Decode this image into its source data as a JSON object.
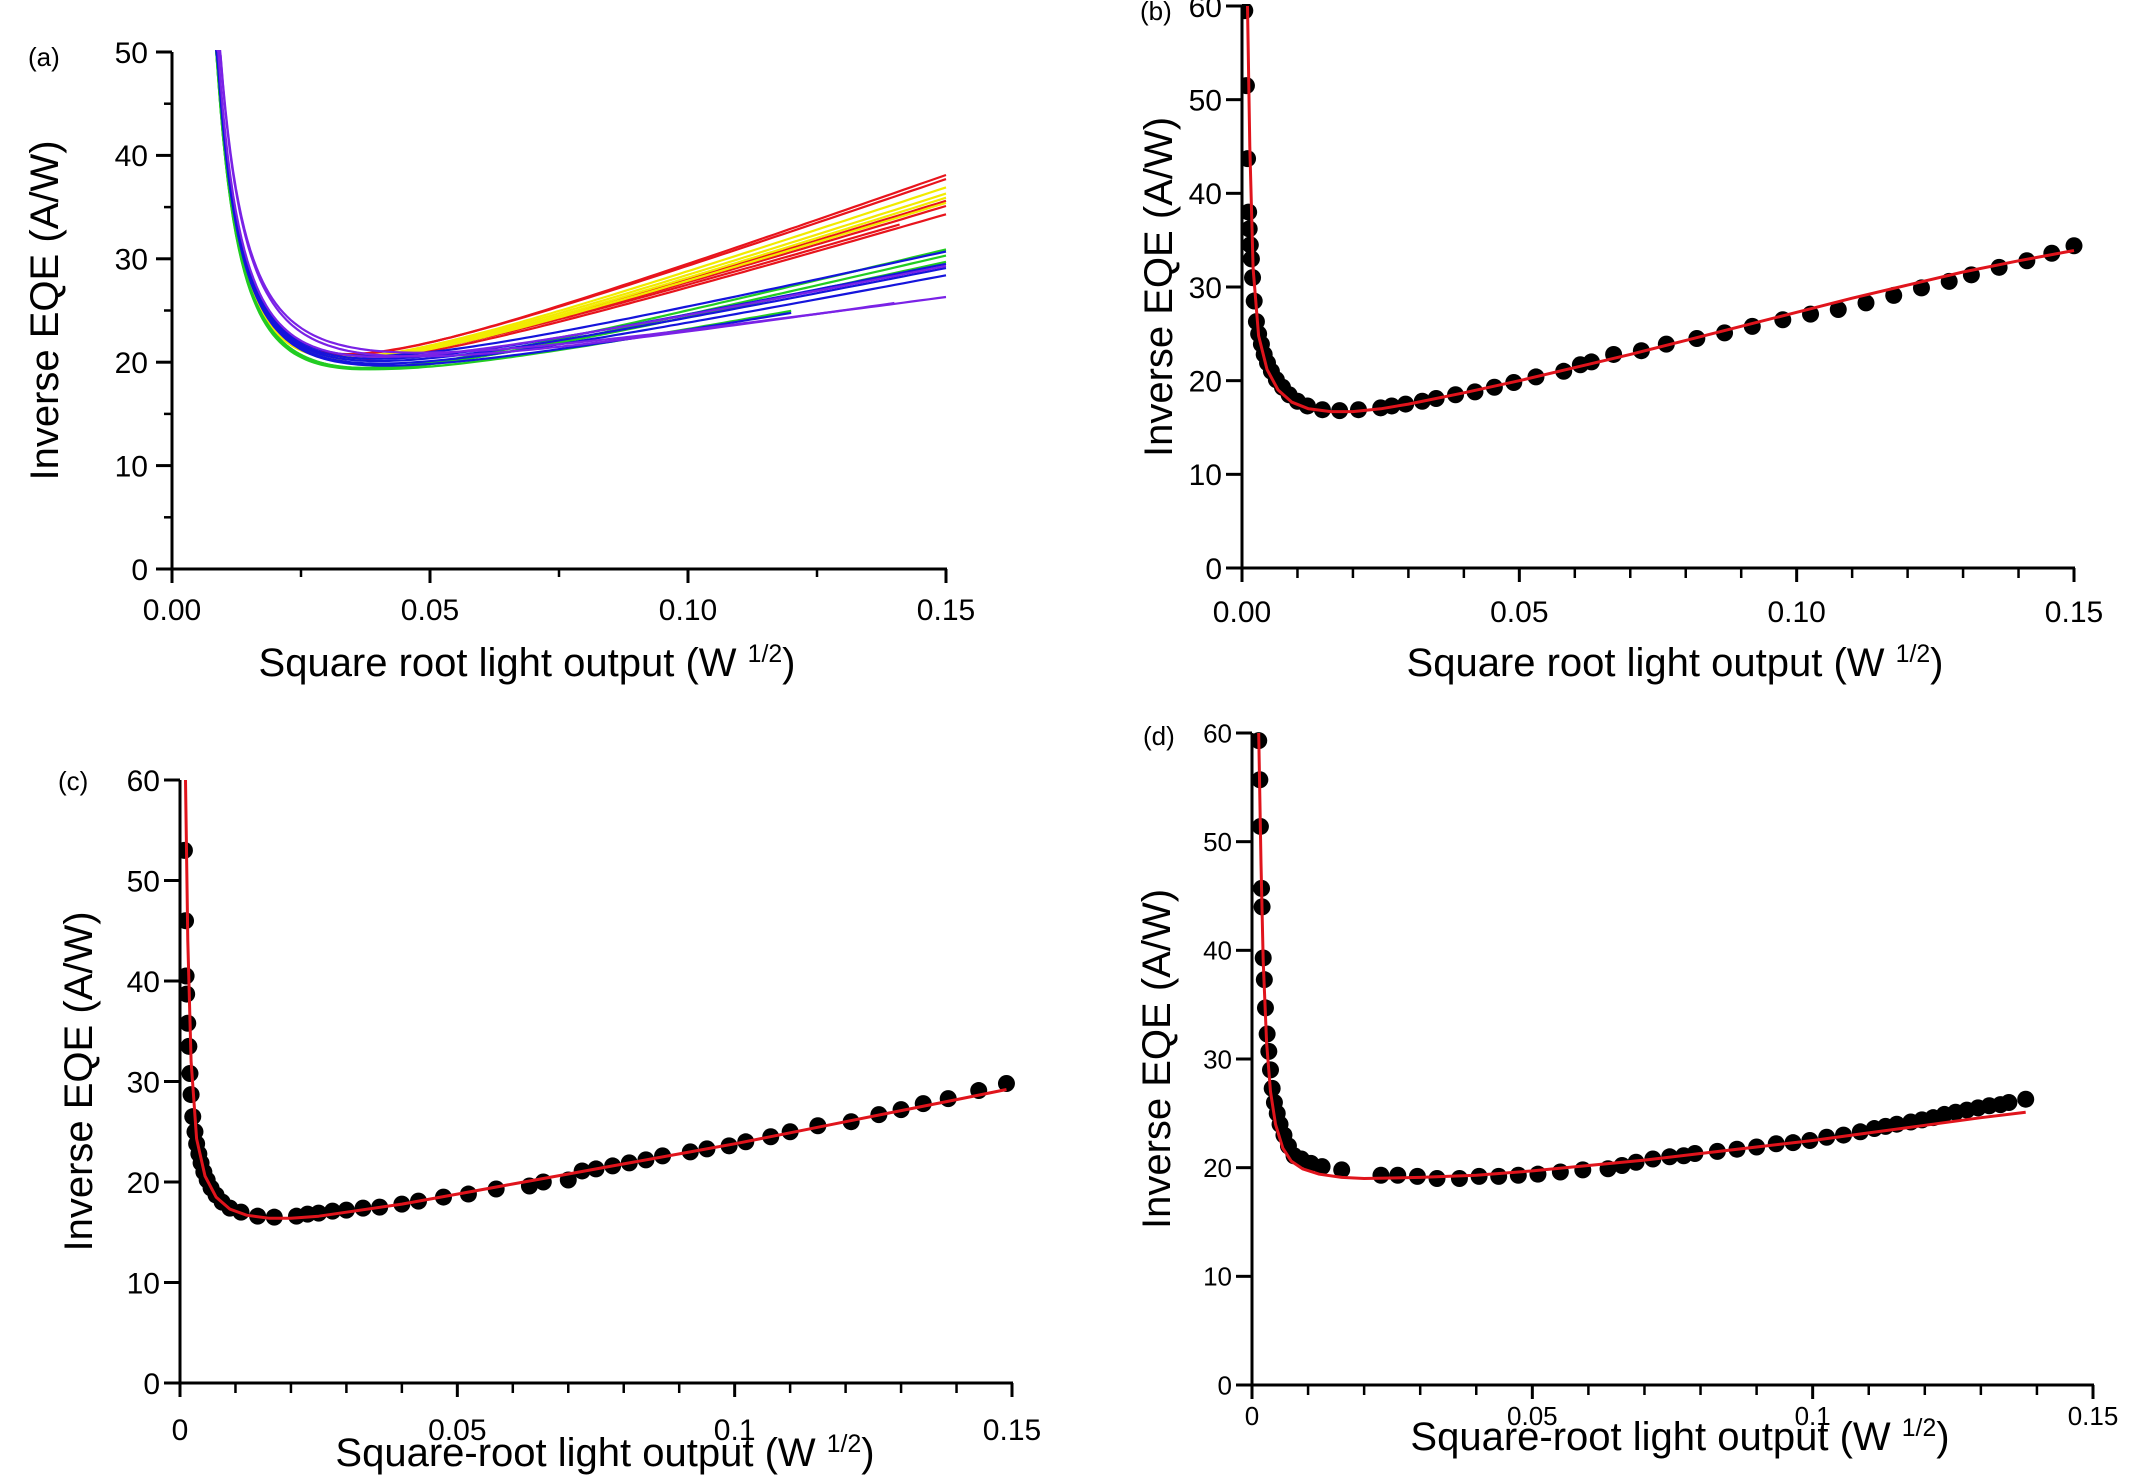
{
  "chart_data": [
    {
      "id": "a",
      "panel_label": "(a)",
      "type": "line",
      "title": "",
      "xlabel": "Square root light output (W",
      "xlabel_sup": "1/2",
      "xlabel_end": ")",
      "ylabel": "Inverse EQE (A/W)",
      "xlim": [
        0,
        0.15
      ],
      "ylim": [
        0,
        50
      ],
      "xticks": [
        0,
        0.05,
        0.1,
        0.15
      ],
      "xtick_labels": [
        "0.00",
        "0.05",
        "0.10",
        "0.15"
      ],
      "x_minor_step": 0.025,
      "yticks": [
        0,
        10,
        20,
        30,
        40,
        50
      ],
      "ytick_labels": [
        "0",
        "10",
        "20",
        "30",
        "40",
        "50"
      ],
      "y_minor_step": 5,
      "grid": false,
      "legend": "none",
      "model": "y = a/x + b + c*x (approximate family shape)",
      "series": [
        {
          "name": "red-1",
          "color": "#e8141c",
          "min": 17.3,
          "xmin": 0.018,
          "end": 38.0,
          "xend": 0.15
        },
        {
          "name": "red-2",
          "color": "#e8141c",
          "min": 17.4,
          "xmin": 0.018,
          "end": 37.6,
          "xend": 0.15
        },
        {
          "name": "red-3",
          "color": "#e8141c",
          "min": 17.2,
          "xmin": 0.018,
          "end": 35.5,
          "xend": 0.15
        },
        {
          "name": "red-4",
          "color": "#e8141c",
          "min": 17.2,
          "xmin": 0.018,
          "end": 35.0,
          "xend": 0.15
        },
        {
          "name": "red-5",
          "color": "#e8141c",
          "min": 17.1,
          "xmin": 0.018,
          "end": 34.2,
          "xend": 0.15
        },
        {
          "name": "red-6",
          "color": "#e8141c",
          "min": 17.3,
          "xmin": 0.018,
          "end": 33.2,
          "xend": 0.141
        },
        {
          "name": "yellow-1",
          "color": "#f2ea00",
          "min": 17.0,
          "xmin": 0.017,
          "end": 36.8,
          "xend": 0.15
        },
        {
          "name": "yellow-2",
          "color": "#f2ea00",
          "min": 17.0,
          "xmin": 0.017,
          "end": 36.2,
          "xend": 0.15
        },
        {
          "name": "yellow-3",
          "color": "#f2ea00",
          "min": 16.9,
          "xmin": 0.017,
          "end": 35.8,
          "xend": 0.15
        },
        {
          "name": "yellow-4",
          "color": "#f2ea00",
          "min": 16.9,
          "xmin": 0.017,
          "end": 35.3,
          "xend": 0.15
        },
        {
          "name": "green-1",
          "color": "#22cc22",
          "min": 16.5,
          "xmin": 0.018,
          "end": 30.8,
          "xend": 0.15
        },
        {
          "name": "green-2",
          "color": "#22cc22",
          "min": 16.4,
          "xmin": 0.018,
          "end": 30.2,
          "xend": 0.15
        },
        {
          "name": "green-3",
          "color": "#22cc22",
          "min": 16.6,
          "xmin": 0.018,
          "end": 29.6,
          "xend": 0.15
        },
        {
          "name": "green-4",
          "color": "#22cc22",
          "min": 16.7,
          "xmin": 0.018,
          "end": 24.8,
          "xend": 0.12
        },
        {
          "name": "blue-1",
          "color": "#1414dc",
          "min": 18.0,
          "xmin": 0.02,
          "end": 30.6,
          "xend": 0.15
        },
        {
          "name": "blue-2",
          "color": "#1414dc",
          "min": 17.8,
          "xmin": 0.02,
          "end": 29.4,
          "xend": 0.15
        },
        {
          "name": "blue-3",
          "color": "#1414dc",
          "min": 17.6,
          "xmin": 0.02,
          "end": 29.0,
          "xend": 0.15
        },
        {
          "name": "blue-4",
          "color": "#1414dc",
          "min": 17.4,
          "xmin": 0.02,
          "end": 28.3,
          "xend": 0.15
        },
        {
          "name": "blue-5",
          "color": "#1414dc",
          "min": 17.3,
          "xmin": 0.02,
          "end": 24.6,
          "xend": 0.12
        },
        {
          "name": "violet-1",
          "color": "#7a22e6",
          "min": 19.4,
          "xmin": 0.03,
          "end": 26.2,
          "xend": 0.15
        },
        {
          "name": "violet-2",
          "color": "#7a22e6",
          "min": 19.0,
          "xmin": 0.03,
          "end": 25.6,
          "xend": 0.14
        },
        {
          "name": "violet-3",
          "color": "#7a22e6",
          "min": 18.2,
          "xmin": 0.022,
          "end": 29.2,
          "xend": 0.15
        }
      ]
    },
    {
      "id": "b",
      "panel_label": "(b)",
      "type": "scatter",
      "title": "",
      "xlabel": "Square root light output (W",
      "xlabel_sup": "1/2",
      "xlabel_end": ")",
      "ylabel": "Inverse EQE (A/W)",
      "xlim": [
        0,
        0.15
      ],
      "ylim": [
        0,
        60
      ],
      "xticks": [
        0,
        0.05,
        0.1,
        0.15
      ],
      "xtick_labels": [
        "0.00",
        "0.05",
        "0.10",
        "0.15"
      ],
      "x_minor_step": 0.01,
      "yticks": [
        0,
        10,
        20,
        30,
        40,
        50,
        60
      ],
      "ytick_labels": [
        "0",
        "10",
        "20",
        "30",
        "40",
        "50",
        "60"
      ],
      "grid": false,
      "legend": "none",
      "fit_color": "#e0141c",
      "marker_color": "#000000",
      "points": {
        "x": [
          0.0005,
          0.0008,
          0.001,
          0.0012,
          0.0013,
          0.0015,
          0.0017,
          0.0019,
          0.0022,
          0.0026,
          0.003,
          0.0035,
          0.004,
          0.0046,
          0.0053,
          0.0062,
          0.0073,
          0.0085,
          0.01,
          0.0118,
          0.0145,
          0.0176,
          0.021,
          0.025,
          0.027,
          0.0295,
          0.0325,
          0.035,
          0.0385,
          0.042,
          0.0455,
          0.049,
          0.053,
          0.058,
          0.061,
          0.063,
          0.067,
          0.072,
          0.0765,
          0.082,
          0.087,
          0.092,
          0.0975,
          0.1025,
          0.1075,
          0.1125,
          0.1175,
          0.1225,
          0.1275,
          0.1315,
          0.1365,
          0.1415,
          0.146,
          0.15
        ],
        "y": [
          59.5,
          51.5,
          43.7,
          38.0,
          36.2,
          34.5,
          33.0,
          31.0,
          28.5,
          26.3,
          25.0,
          23.9,
          22.8,
          21.9,
          21.0,
          20.1,
          19.3,
          18.5,
          17.8,
          17.3,
          16.9,
          16.8,
          16.9,
          17.1,
          17.3,
          17.5,
          17.8,
          18.1,
          18.5,
          18.8,
          19.3,
          19.8,
          20.4,
          21.0,
          21.7,
          22.0,
          22.8,
          23.2,
          23.9,
          24.5,
          25.1,
          25.8,
          26.5,
          27.1,
          27.6,
          28.3,
          29.1,
          29.9,
          30.6,
          31.3,
          32.1,
          32.8,
          33.6,
          34.4
        ]
      },
      "fit": {
        "x": [
          0.001,
          0.0014,
          0.002,
          0.003,
          0.0045,
          0.0065,
          0.009,
          0.012,
          0.016,
          0.02,
          0.025,
          0.03,
          0.04,
          0.05,
          0.06,
          0.07,
          0.08,
          0.09,
          0.1,
          0.11,
          0.12,
          0.13,
          0.14,
          0.15
        ],
        "y": [
          60.0,
          45.0,
          32.0,
          24.8,
          21.2,
          19.0,
          17.7,
          17.0,
          16.7,
          16.7,
          17.0,
          17.5,
          18.7,
          20.0,
          21.4,
          22.8,
          24.3,
          25.8,
          27.3,
          28.8,
          30.2,
          31.6,
          32.8,
          33.9
        ]
      }
    },
    {
      "id": "c",
      "panel_label": "(c)",
      "type": "scatter",
      "title": "",
      "xlabel": "Square-root light output (W",
      "xlabel_sup": "1/2",
      "xlabel_end": ")",
      "ylabel": "Inverse EQE (A/W)",
      "xlim": [
        0,
        0.15
      ],
      "ylim": [
        0,
        60
      ],
      "xticks": [
        0,
        0.05,
        0.1,
        0.15
      ],
      "xtick_labels": [
        "0",
        "0.05",
        "0.1",
        "0.15"
      ],
      "x_minor_step": 0.01,
      "yticks": [
        0,
        10,
        20,
        30,
        40,
        50,
        60
      ],
      "ytick_labels": [
        "0",
        "10",
        "20",
        "30",
        "40",
        "50",
        "60"
      ],
      "grid": false,
      "legend": "none",
      "fit_color": "#e0141c",
      "marker_color": "#000000",
      "points": {
        "x": [
          0.0008,
          0.001,
          0.0011,
          0.0012,
          0.0014,
          0.0016,
          0.0018,
          0.002,
          0.0023,
          0.0027,
          0.003,
          0.0034,
          0.0038,
          0.0043,
          0.0049,
          0.0056,
          0.0065,
          0.0076,
          0.009,
          0.011,
          0.014,
          0.017,
          0.021,
          0.023,
          0.025,
          0.0275,
          0.03,
          0.033,
          0.036,
          0.04,
          0.043,
          0.0475,
          0.052,
          0.057,
          0.063,
          0.0655,
          0.07,
          0.0725,
          0.075,
          0.078,
          0.081,
          0.084,
          0.087,
          0.092,
          0.095,
          0.099,
          0.102,
          0.1065,
          0.11,
          0.115,
          0.121,
          0.126,
          0.13,
          0.134,
          0.1385,
          0.144,
          0.149
        ],
        "y": [
          53.0,
          46.0,
          40.5,
          38.7,
          35.8,
          33.5,
          30.8,
          28.7,
          26.5,
          25.0,
          23.8,
          22.8,
          21.9,
          21.0,
          20.2,
          19.4,
          18.7,
          18.0,
          17.4,
          17.0,
          16.6,
          16.5,
          16.6,
          16.8,
          16.9,
          17.1,
          17.2,
          17.4,
          17.5,
          17.8,
          18.1,
          18.5,
          18.8,
          19.3,
          19.6,
          20.0,
          20.2,
          21.1,
          21.3,
          21.6,
          21.9,
          22.2,
          22.6,
          23.0,
          23.3,
          23.6,
          24.0,
          24.5,
          25.0,
          25.6,
          26.0,
          26.7,
          27.2,
          27.8,
          28.3,
          29.1,
          29.8
        ]
      },
      "fit": {
        "x": [
          0.001,
          0.0014,
          0.002,
          0.003,
          0.0045,
          0.0065,
          0.009,
          0.012,
          0.016,
          0.02,
          0.025,
          0.03,
          0.04,
          0.05,
          0.06,
          0.07,
          0.08,
          0.09,
          0.1,
          0.11,
          0.12,
          0.13,
          0.14,
          0.149
        ],
        "y": [
          60.0,
          44.0,
          32.0,
          24.3,
          20.6,
          18.5,
          17.3,
          16.7,
          16.4,
          16.4,
          16.6,
          17.0,
          17.8,
          18.8,
          19.8,
          20.8,
          21.8,
          22.8,
          23.8,
          24.9,
          26.0,
          27.1,
          28.2,
          29.2
        ]
      }
    },
    {
      "id": "d",
      "panel_label": "(d)",
      "type": "scatter",
      "title": "",
      "xlabel": "Square-root light output (W",
      "xlabel_sup": "1/2",
      "xlabel_end": ")",
      "ylabel": "Inverse EQE (A/W)",
      "xlim": [
        0,
        0.15
      ],
      "ylim": [
        0,
        60
      ],
      "xticks": [
        0,
        0.05,
        0.1,
        0.15
      ],
      "xtick_labels": [
        "0",
        "0.05",
        "0.1",
        "0.15"
      ],
      "x_minor_step": 0.01,
      "yticks": [
        0,
        10,
        20,
        30,
        40,
        50,
        60
      ],
      "ytick_labels": [
        "0",
        "10",
        "20",
        "30",
        "40",
        "50",
        "60"
      ],
      "grid": false,
      "legend": "none",
      "fit_color": "#e0141c",
      "marker_color": "#000000",
      "points": {
        "x": [
          0.0012,
          0.0014,
          0.0015,
          0.0017,
          0.0018,
          0.002,
          0.0022,
          0.0024,
          0.0027,
          0.003,
          0.0033,
          0.0036,
          0.004,
          0.0045,
          0.005,
          0.0057,
          0.0065,
          0.0075,
          0.0088,
          0.0105,
          0.0125,
          0.016,
          0.023,
          0.026,
          0.0295,
          0.033,
          0.037,
          0.0405,
          0.044,
          0.0475,
          0.051,
          0.055,
          0.059,
          0.0635,
          0.066,
          0.0685,
          0.0715,
          0.0745,
          0.077,
          0.079,
          0.083,
          0.0865,
          0.09,
          0.0935,
          0.0965,
          0.0995,
          0.1025,
          0.1055,
          0.1085,
          0.111,
          0.113,
          0.115,
          0.1175,
          0.1195,
          0.1215,
          0.1235,
          0.1255,
          0.1275,
          0.1295,
          0.1315,
          0.1335,
          0.135,
          0.138
        ],
        "y": [
          59.3,
          55.7,
          51.4,
          45.7,
          44.0,
          39.3,
          37.3,
          34.7,
          32.3,
          30.7,
          29.0,
          27.3,
          26.0,
          25.0,
          24.0,
          23.0,
          22.0,
          21.1,
          20.8,
          20.4,
          20.1,
          19.8,
          19.3,
          19.3,
          19.2,
          19.0,
          19.0,
          19.2,
          19.2,
          19.3,
          19.4,
          19.6,
          19.8,
          19.9,
          20.2,
          20.5,
          20.8,
          21.0,
          21.1,
          21.3,
          21.5,
          21.7,
          21.9,
          22.2,
          22.3,
          22.5,
          22.8,
          23.0,
          23.3,
          23.6,
          23.8,
          24.0,
          24.2,
          24.4,
          24.6,
          24.9,
          25.1,
          25.3,
          25.5,
          25.7,
          25.8,
          26.0,
          26.3
        ]
      },
      "fit": {
        "x": [
          0.0012,
          0.0016,
          0.002,
          0.0026,
          0.0033,
          0.0042,
          0.0055,
          0.007,
          0.009,
          0.012,
          0.016,
          0.02,
          0.03,
          0.04,
          0.05,
          0.06,
          0.07,
          0.08,
          0.09,
          0.1,
          0.11,
          0.12,
          0.13,
          0.138
        ],
        "y": [
          60.0,
          48.0,
          39.0,
          31.5,
          27.0,
          24.0,
          21.8,
          20.6,
          19.9,
          19.4,
          19.1,
          19.0,
          19.1,
          19.3,
          19.7,
          20.2,
          20.7,
          21.3,
          21.9,
          22.5,
          23.2,
          23.9,
          24.6,
          25.1
        ]
      }
    }
  ]
}
